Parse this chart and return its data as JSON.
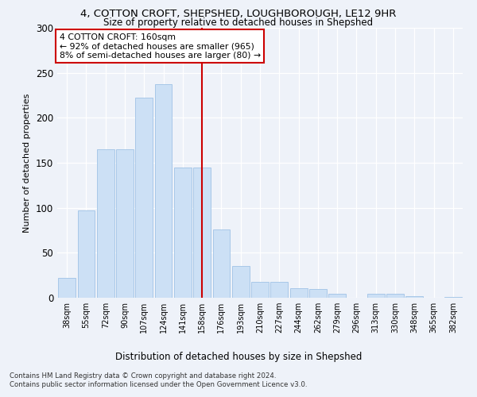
{
  "title1": "4, COTTON CROFT, SHEPSHED, LOUGHBOROUGH, LE12 9HR",
  "title2": "Size of property relative to detached houses in Shepshed",
  "xlabel": "Distribution of detached houses by size in Shepshed",
  "ylabel": "Number of detached properties",
  "bar_labels": [
    "38sqm",
    "55sqm",
    "72sqm",
    "90sqm",
    "107sqm",
    "124sqm",
    "141sqm",
    "158sqm",
    "176sqm",
    "193sqm",
    "210sqm",
    "227sqm",
    "244sqm",
    "262sqm",
    "279sqm",
    "296sqm",
    "313sqm",
    "330sqm",
    "348sqm",
    "365sqm",
    "382sqm"
  ],
  "bar_values": [
    22,
    97,
    165,
    165,
    222,
    237,
    145,
    145,
    76,
    35,
    18,
    18,
    11,
    10,
    4,
    0,
    4,
    4,
    2,
    0,
    1
  ],
  "bar_color": "#cce0f5",
  "bar_edgecolor": "#a8c8e8",
  "vline_index": 7,
  "vline_color": "#cc0000",
  "annotation_line1": "4 COTTON CROFT: 160sqm",
  "annotation_line2": "← 92% of detached houses are smaller (965)",
  "annotation_line3": "8% of semi-detached houses are larger (80) →",
  "annotation_box_color": "#ffffff",
  "annotation_box_edgecolor": "#cc0000",
  "ylim": [
    0,
    300
  ],
  "yticks": [
    0,
    50,
    100,
    150,
    200,
    250,
    300
  ],
  "footer1": "Contains HM Land Registry data © Crown copyright and database right 2024.",
  "footer2": "Contains public sector information licensed under the Open Government Licence v3.0.",
  "bg_color": "#eef2f9",
  "plot_bg_color": "#eef2f9"
}
